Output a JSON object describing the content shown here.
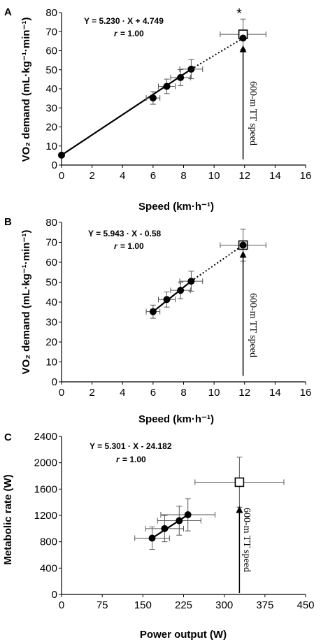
{
  "chart_data": [
    {
      "type": "scatter",
      "panel_label": "A",
      "xlabel": "Speed (km·h⁻¹)",
      "ylabel": "VO₂ demand (mL·kg⁻¹·min⁻¹)",
      "xlim": [
        0,
        16
      ],
      "ylim": [
        0,
        80
      ],
      "xticks": [
        0,
        2,
        4,
        6,
        8,
        10,
        12,
        14,
        16
      ],
      "yticks": [
        0,
        10,
        20,
        30,
        40,
        50,
        60,
        70,
        80
      ],
      "equation": "Y = 5.230 · X + 4.749",
      "r_label": "r",
      "r_value": "= 1.00",
      "annotation": "600-m TT speed",
      "asterisk": "*",
      "measured_points": [
        {
          "x": 0,
          "y": 5.2
        },
        {
          "x": 6.0,
          "y": 35.2,
          "x_err": 0.45,
          "y_err": 3.3
        },
        {
          "x": 6.9,
          "y": 41.3,
          "x_err": 0.55,
          "y_err": 3.8
        },
        {
          "x": 7.8,
          "y": 45.9,
          "x_err": 0.65,
          "y_err": 4.2
        },
        {
          "x": 8.5,
          "y": 50.3,
          "x_err": 0.75,
          "y_err": 5.0
        }
      ],
      "extrapolated_point": {
        "x": 11.9,
        "y": 66.6
      },
      "actual_point": {
        "x": 11.9,
        "y": 68.6,
        "x_err": 1.5,
        "y_err": 8.0
      },
      "solid_line": [
        [
          0,
          5.2
        ],
        [
          8.5,
          50.3
        ]
      ],
      "dotted_line": [
        [
          8.5,
          50.3
        ],
        [
          11.9,
          66.6
        ]
      ],
      "arrow": {
        "x": 11.9,
        "y_from": 3,
        "y_to": 61
      }
    },
    {
      "type": "scatter",
      "panel_label": "B",
      "xlabel": "Speed (km·h⁻¹)",
      "ylabel": "VO₂ demand (mL·kg⁻¹·min⁻¹)",
      "xlim": [
        0,
        16
      ],
      "ylim": [
        0,
        80
      ],
      "xticks": [
        0,
        2,
        4,
        6,
        8,
        10,
        12,
        14,
        16
      ],
      "yticks": [
        0,
        10,
        20,
        30,
        40,
        50,
        60,
        70,
        80
      ],
      "equation": "Y = 5.943 · X - 0.58",
      "r_label": "r",
      "r_value": "= 1.00",
      "annotation": "600-m TT speed",
      "measured_points": [
        {
          "x": 6.0,
          "y": 35.2,
          "x_err": 0.45,
          "y_err": 3.3
        },
        {
          "x": 6.9,
          "y": 41.3,
          "x_err": 0.55,
          "y_err": 3.8
        },
        {
          "x": 7.8,
          "y": 45.9,
          "x_err": 0.65,
          "y_err": 4.2
        },
        {
          "x": 8.5,
          "y": 50.5,
          "x_err": 0.75,
          "y_err": 5.0
        }
      ],
      "extrapolated_point": {
        "x": 11.9,
        "y": 68.6
      },
      "actual_point": {
        "x": 11.9,
        "y": 68.6,
        "x_err": 1.5,
        "y_err": 8.0
      },
      "solid_line": [
        [
          6.0,
          35.2
        ],
        [
          8.5,
          50.5
        ]
      ],
      "dotted_line": [
        [
          8.5,
          50.5
        ],
        [
          11.9,
          68.6
        ]
      ],
      "arrow": {
        "x": 11.9,
        "y_from": 3,
        "y_to": 64
      }
    },
    {
      "type": "scatter",
      "panel_label": "C",
      "xlabel": "Power output (W)",
      "ylabel": "Metabolic rate (W)",
      "xlim": [
        0,
        450
      ],
      "ylim": [
        0,
        2400
      ],
      "xticks": [
        0,
        75,
        150,
        225,
        300,
        375,
        450
      ],
      "yticks": [
        0,
        400,
        800,
        1200,
        1600,
        2000,
        2400
      ],
      "equation": "Y = 5.301 · X - 24.182",
      "r_label": "r",
      "r_value": "= 1.00",
      "annotation": "600-m TT speed",
      "measured_points": [
        {
          "x": 167,
          "y": 855,
          "x_err": 32,
          "y_err": 170
        },
        {
          "x": 190,
          "y": 1000,
          "x_err": 35,
          "y_err": 200
        },
        {
          "x": 217,
          "y": 1120,
          "x_err": 40,
          "y_err": 220
        },
        {
          "x": 233,
          "y": 1210,
          "x_err": 50,
          "y_err": 245
        }
      ],
      "actual_point": {
        "x": 328,
        "y": 1705,
        "x_err": 82,
        "y_err": 380
      },
      "solid_line": [
        [
          167,
          855
        ],
        [
          233,
          1210
        ]
      ],
      "arrow": {
        "x": 328,
        "y_from": 20,
        "y_to": 1290
      }
    }
  ]
}
